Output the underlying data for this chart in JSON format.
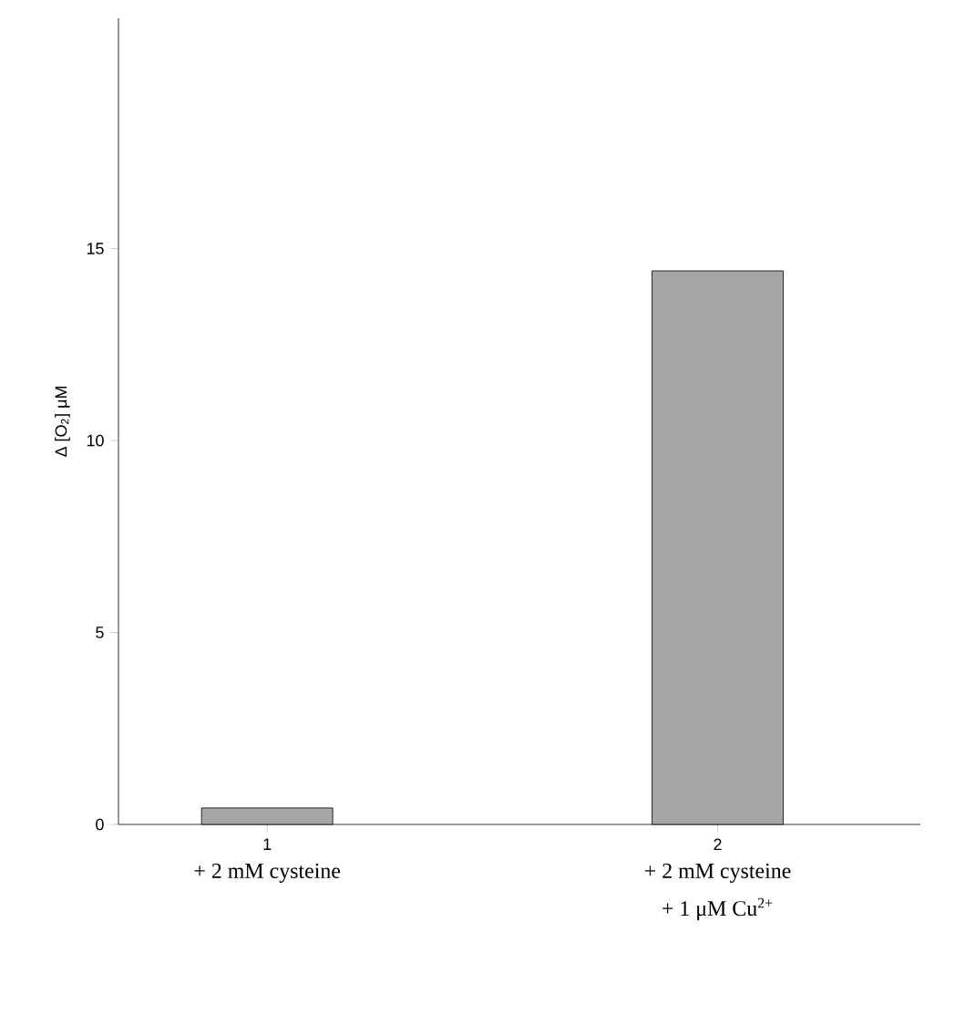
{
  "chart_data": {
    "type": "bar",
    "ylabel": "Δ [O$_{2}$] μM",
    "categories": [
      "1",
      "2"
    ],
    "values": [
      0.43,
      14.42
    ],
    "color": "#a6a6a6",
    "ylim": [
      0,
      21
    ],
    "yticks": [
      0,
      5,
      10,
      15
    ],
    "grid": false,
    "annotations": [
      "+ 2 mM cysteine",
      "+ 2 mM cysteine",
      "+ 1 μM Cu$^{2+}$"
    ]
  }
}
